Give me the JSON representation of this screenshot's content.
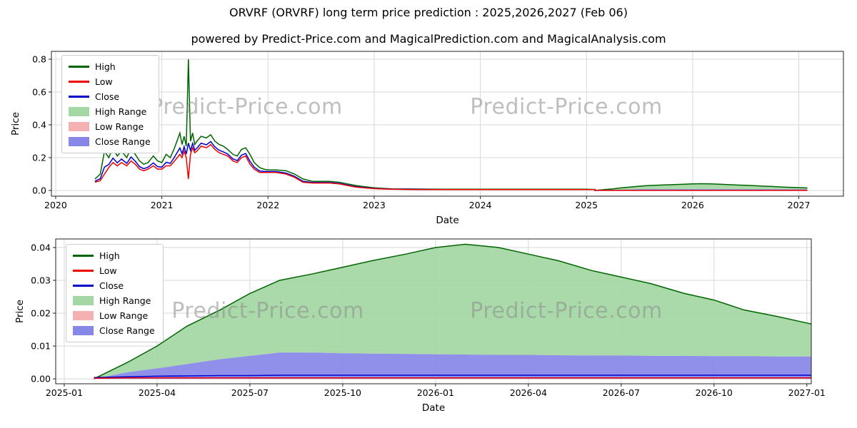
{
  "title": "ORVRF (ORVRF) long term price prediction : 2025,2026,2027 (Feb 06)",
  "subtitle": "powered by Predict-Price.com and MagicalPrediction.com and MagicalAnalysis.com",
  "watermark": "Predict-Price.com",
  "colors": {
    "high_line": "#006400",
    "low_line": "#ee0000",
    "close_line": "#0000cd",
    "high_range_fill": "#a3d7a3",
    "low_range_fill": "#f4b1b1",
    "close_range_fill": "#8787e8",
    "grid": "#d8d8d8",
    "frame": "#222222"
  },
  "legend": {
    "items": [
      {
        "label": "High",
        "type": "line",
        "color": "#006400"
      },
      {
        "label": "Low",
        "type": "line",
        "color": "#ee0000"
      },
      {
        "label": "Close",
        "type": "line",
        "color": "#0000cd"
      },
      {
        "label": "High Range",
        "type": "patch",
        "color": "#a3d7a3"
      },
      {
        "label": "Low Range",
        "type": "patch",
        "color": "#f4b1b1"
      },
      {
        "label": "Close Range",
        "type": "patch",
        "color": "#8787e8"
      }
    ]
  },
  "chart_data": [
    {
      "type": "line",
      "title": "",
      "xlabel": "Date",
      "ylabel": "Price",
      "grid": true,
      "legend_position": "upper left",
      "xlim": [
        2019.96,
        2027.42
      ],
      "ylim": [
        -0.035,
        0.848
      ],
      "xticks": [
        {
          "v": 2020,
          "label": "2020"
        },
        {
          "v": 2021,
          "label": "2021"
        },
        {
          "v": 2022,
          "label": "2022"
        },
        {
          "v": 2023,
          "label": "2023"
        },
        {
          "v": 2024,
          "label": "2024"
        },
        {
          "v": 2025,
          "label": "2025"
        },
        {
          "v": 2026,
          "label": "2026"
        },
        {
          "v": 2027,
          "label": "2027"
        }
      ],
      "yticks": [
        {
          "v": 0.0,
          "label": "0.0"
        },
        {
          "v": 0.2,
          "label": "0.2"
        },
        {
          "v": 0.4,
          "label": "0.4"
        },
        {
          "v": 0.6,
          "label": "0.6"
        },
        {
          "v": 0.8,
          "label": "0.8"
        }
      ],
      "historical": {
        "x": [
          2020.37,
          2020.42,
          2020.46,
          2020.5,
          2020.54,
          2020.58,
          2020.62,
          2020.67,
          2020.71,
          2020.75,
          2020.79,
          2020.83,
          2020.87,
          2020.92,
          2020.96,
          2021.0,
          2021.04,
          2021.08,
          2021.12,
          2021.17,
          2021.19,
          2021.21,
          2021.23,
          2021.25,
          2021.27,
          2021.29,
          2021.31,
          2021.33,
          2021.37,
          2021.42,
          2021.46,
          2021.5,
          2021.54,
          2021.58,
          2021.62,
          2021.67,
          2021.71,
          2021.75,
          2021.79,
          2021.83,
          2021.87,
          2021.92,
          2021.96,
          2022.0,
          2022.08,
          2022.17,
          2022.25,
          2022.33,
          2022.42,
          2022.5,
          2022.58,
          2022.67,
          2022.75,
          2022.83,
          2022.92,
          2023.0,
          2023.08,
          2023.17,
          2023.33,
          2023.5,
          2023.67,
          2023.83,
          2024.0,
          2024.25,
          2024.5,
          2024.75,
          2025.0,
          2025.08
        ],
        "high": [
          0.07,
          0.1,
          0.24,
          0.2,
          0.26,
          0.21,
          0.24,
          0.2,
          0.26,
          0.22,
          0.18,
          0.16,
          0.17,
          0.21,
          0.18,
          0.17,
          0.22,
          0.2,
          0.26,
          0.35,
          0.28,
          0.33,
          0.27,
          0.8,
          0.3,
          0.35,
          0.28,
          0.3,
          0.33,
          0.32,
          0.34,
          0.3,
          0.28,
          0.27,
          0.25,
          0.22,
          0.21,
          0.25,
          0.26,
          0.22,
          0.17,
          0.14,
          0.13,
          0.125,
          0.125,
          0.12,
          0.1,
          0.07,
          0.055,
          0.055,
          0.055,
          0.05,
          0.04,
          0.03,
          0.022,
          0.016,
          0.013,
          0.01,
          0.009,
          0.008,
          0.007,
          0.007,
          0.007,
          0.007,
          0.007,
          0.007,
          0.007,
          0.006
        ],
        "low": [
          0.05,
          0.06,
          0.1,
          0.14,
          0.17,
          0.15,
          0.17,
          0.15,
          0.18,
          0.16,
          0.13,
          0.12,
          0.13,
          0.15,
          0.13,
          0.13,
          0.15,
          0.15,
          0.18,
          0.22,
          0.2,
          0.24,
          0.2,
          0.07,
          0.22,
          0.26,
          0.23,
          0.24,
          0.27,
          0.26,
          0.28,
          0.25,
          0.23,
          0.22,
          0.21,
          0.18,
          0.17,
          0.2,
          0.21,
          0.16,
          0.13,
          0.11,
          0.11,
          0.11,
          0.11,
          0.1,
          0.08,
          0.05,
          0.045,
          0.045,
          0.045,
          0.04,
          0.03,
          0.02,
          0.015,
          0.011,
          0.009,
          0.007,
          0.006,
          0.005,
          0.005,
          0.005,
          0.005,
          0.005,
          0.005,
          0.005,
          0.005,
          0.005
        ],
        "close": [
          0.056,
          0.072,
          0.142,
          0.158,
          0.197,
          0.168,
          0.191,
          0.165,
          0.204,
          0.178,
          0.145,
          0.132,
          0.142,
          0.168,
          0.145,
          0.142,
          0.171,
          0.165,
          0.204,
          0.259,
          0.224,
          0.267,
          0.221,
          0.289,
          0.244,
          0.287,
          0.245,
          0.258,
          0.288,
          0.278,
          0.298,
          0.265,
          0.245,
          0.235,
          0.222,
          0.192,
          0.182,
          0.215,
          0.225,
          0.178,
          0.142,
          0.119,
          0.116,
          0.115,
          0.115,
          0.106,
          0.086,
          0.056,
          0.048,
          0.048,
          0.048,
          0.043,
          0.033,
          0.023,
          0.017,
          0.0125,
          0.01,
          0.008,
          0.007,
          0.006,
          0.0056,
          0.0056,
          0.0056,
          0.0056,
          0.0056,
          0.0056,
          0.0056,
          0.0053
        ]
      },
      "forecast": {
        "x": [
          2025.08,
          2025.17,
          2025.25,
          2025.33,
          2025.42,
          2025.5,
          2025.58,
          2025.67,
          2025.75,
          2025.83,
          2025.92,
          2026.0,
          2026.08,
          2026.17,
          2026.25,
          2026.33,
          2026.42,
          2026.5,
          2026.58,
          2026.67,
          2026.75,
          2026.83,
          2026.92,
          2027.0,
          2027.08
        ],
        "high_range_upper": [
          0.0,
          0.005,
          0.01,
          0.016,
          0.021,
          0.026,
          0.03,
          0.032,
          0.034,
          0.036,
          0.038,
          0.04,
          0.041,
          0.04,
          0.038,
          0.036,
          0.033,
          0.031,
          0.029,
          0.026,
          0.024,
          0.021,
          0.019,
          0.017,
          0.015
        ],
        "close_range_upper": [
          0.0,
          0.002,
          0.0032,
          0.0045,
          0.006,
          0.007,
          0.008,
          0.008,
          0.0078,
          0.0077,
          0.0076,
          0.0075,
          0.0074,
          0.0073,
          0.0073,
          0.0072,
          0.0071,
          0.0071,
          0.007,
          0.007,
          0.0069,
          0.0069,
          0.0068,
          0.0068,
          0.0067
        ],
        "low_range_upper": [
          0.0,
          0.0004,
          0.0005,
          0.0005,
          0.0005,
          0.0005,
          0.0005,
          0.0005,
          0.0005,
          0.0005,
          0.0005,
          0.0005,
          0.0005,
          0.0005,
          0.0005,
          0.0005,
          0.0005,
          0.0005,
          0.0005,
          0.0005,
          0.0005,
          0.0005,
          0.0005,
          0.0005,
          0.0005
        ],
        "close": [
          0.0004,
          0.0006,
          0.0008,
          0.0009,
          0.001,
          0.001,
          0.0011,
          0.0011,
          0.0011,
          0.0011,
          0.0011,
          0.0011,
          0.0011,
          0.0011,
          0.0011,
          0.0011,
          0.0011,
          0.0011,
          0.0011,
          0.0011,
          0.0011,
          0.0011,
          0.0011,
          0.0011,
          0.0011
        ],
        "low": [
          0.0002,
          0.0003,
          0.0003,
          0.0003,
          0.0003,
          0.0003,
          0.0003,
          0.0003,
          0.0003,
          0.0003,
          0.0003,
          0.0003,
          0.0003,
          0.0003,
          0.0003,
          0.0003,
          0.0003,
          0.0003,
          0.0003,
          0.0003,
          0.0003,
          0.0003,
          0.0003,
          0.0003,
          0.0003
        ]
      }
    },
    {
      "type": "area",
      "title": "",
      "xlabel": "Date",
      "ylabel": "Price",
      "grid": true,
      "legend_position": "upper left",
      "xlim": [
        2024.977,
        2027.012
      ],
      "ylim": [
        -0.0015,
        0.0426
      ],
      "xticks": [
        {
          "v": 2025.0,
          "label": "2025-01"
        },
        {
          "v": 2025.25,
          "label": "2025-04"
        },
        {
          "v": 2025.5,
          "label": "2025-07"
        },
        {
          "v": 2025.75,
          "label": "2025-10"
        },
        {
          "v": 2026.0,
          "label": "2026-01"
        },
        {
          "v": 2026.25,
          "label": "2026-04"
        },
        {
          "v": 2026.5,
          "label": "2026-07"
        },
        {
          "v": 2026.75,
          "label": "2026-10"
        },
        {
          "v": 2027.0,
          "label": "2027-01"
        }
      ],
      "yticks": [
        {
          "v": 0.0,
          "label": "0.00"
        },
        {
          "v": 0.01,
          "label": "0.01"
        },
        {
          "v": 0.02,
          "label": "0.02"
        },
        {
          "v": 0.03,
          "label": "0.03"
        },
        {
          "v": 0.04,
          "label": "0.04"
        }
      ],
      "forecast": {
        "x": [
          2025.08,
          2025.17,
          2025.25,
          2025.33,
          2025.42,
          2025.5,
          2025.58,
          2025.67,
          2025.75,
          2025.83,
          2025.92,
          2026.0,
          2026.08,
          2026.17,
          2026.25,
          2026.33,
          2026.42,
          2026.5,
          2026.58,
          2026.67,
          2026.75,
          2026.83,
          2026.92,
          2027.0,
          2027.08
        ],
        "high_range_upper": [
          0.0,
          0.005,
          0.01,
          0.016,
          0.021,
          0.026,
          0.03,
          0.032,
          0.034,
          0.036,
          0.038,
          0.04,
          0.041,
          0.04,
          0.038,
          0.036,
          0.033,
          0.031,
          0.029,
          0.026,
          0.024,
          0.021,
          0.019,
          0.017,
          0.015
        ],
        "close_range_upper": [
          0.0,
          0.002,
          0.0032,
          0.0045,
          0.006,
          0.007,
          0.008,
          0.008,
          0.0078,
          0.0077,
          0.0076,
          0.0075,
          0.0074,
          0.0073,
          0.0073,
          0.0072,
          0.0071,
          0.0071,
          0.007,
          0.007,
          0.0069,
          0.0069,
          0.0068,
          0.0068,
          0.0067
        ],
        "low_range_upper": [
          0.0,
          0.0004,
          0.0005,
          0.0005,
          0.0005,
          0.0005,
          0.0005,
          0.0005,
          0.0005,
          0.0005,
          0.0005,
          0.0005,
          0.0005,
          0.0005,
          0.0005,
          0.0005,
          0.0005,
          0.0005,
          0.0005,
          0.0005,
          0.0005,
          0.0005,
          0.0005,
          0.0005,
          0.0005
        ],
        "close": [
          0.0004,
          0.0006,
          0.0008,
          0.0009,
          0.001,
          0.001,
          0.0011,
          0.0011,
          0.0011,
          0.0011,
          0.0011,
          0.0011,
          0.0011,
          0.0011,
          0.0011,
          0.0011,
          0.0011,
          0.0011,
          0.0011,
          0.0011,
          0.0011,
          0.0011,
          0.0011,
          0.0011,
          0.0011
        ],
        "low": [
          0.0002,
          0.0003,
          0.0003,
          0.0003,
          0.0003,
          0.0003,
          0.0003,
          0.0003,
          0.0003,
          0.0003,
          0.0003,
          0.0003,
          0.0003,
          0.0003,
          0.0003,
          0.0003,
          0.0003,
          0.0003,
          0.0003,
          0.0003,
          0.0003,
          0.0003,
          0.0003,
          0.0003,
          0.0003
        ]
      }
    }
  ]
}
